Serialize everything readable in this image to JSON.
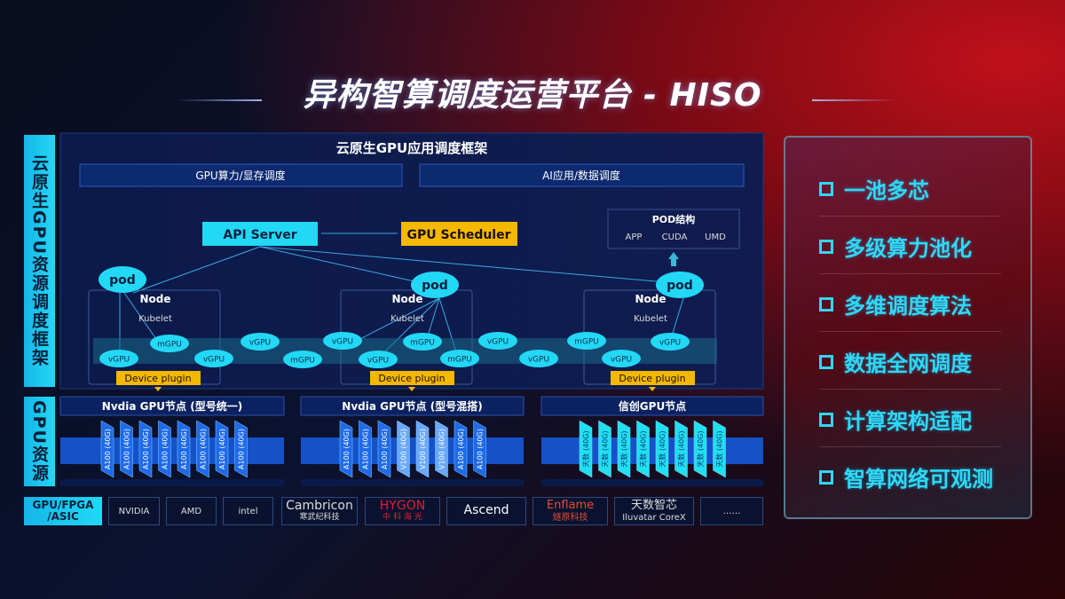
{
  "title": "异构智算调度运营平台 - HISO",
  "left_labels": {
    "framework": "云原生GPU资源调度框架",
    "resources": "GPU资源",
    "chips": "GPU/FPGA /ASIC"
  },
  "framework": {
    "header": "云原生GPU应用调度框架",
    "sub": [
      "GPU算力/显存调度",
      "AI应用/数据调度"
    ],
    "api_server": "API Server",
    "gpu_scheduler": "GPU Scheduler",
    "pod_structure": {
      "title": "POD结构",
      "items": [
        "APP",
        "CUDA",
        "UMD"
      ]
    },
    "pod": "pod",
    "node": "Node",
    "kubelet": "Kubelet",
    "device_plugin": "Device plugin",
    "gpus": [
      "vGPU",
      "mGPU",
      "vGPU",
      "vGPU",
      "mGPU",
      "vGPU",
      "vGPU",
      "mGPU",
      "mGPU",
      "vGPU",
      "vGPU",
      "mGPU",
      "vGPU",
      "vGPU"
    ]
  },
  "gpu_nodes": [
    {
      "title": "Nvdia GPU节点 (型号统一)",
      "cards": [
        "A100 (40G)",
        "A100 (40G)",
        "A100 (40G)",
        "A100 (40G)",
        "A100 (40G)",
        "A100 (40G)",
        "A100 (40G)",
        "A100 (40G)"
      ]
    },
    {
      "title": "Nvdia GPU节点 (型号混搭)",
      "cards": [
        "A100 (40G)",
        "A100 (40G)",
        "A100 (40G)",
        "V100 (40G)",
        "V100 (40G)",
        "V100 (40G)",
        "A100 (40G)",
        "A100 (40G)"
      ]
    },
    {
      "title": "信创GPU节点",
      "cards": [
        "天数 (40G)",
        "天数 (40G)",
        "天数 (40G)",
        "天数 (40G)",
        "天数 (40G)",
        "天数 (40G)",
        "天数 (40G)",
        "天数 (40G)"
      ]
    }
  ],
  "vendors": [
    [
      "NVIDIA"
    ],
    [
      "AMD"
    ],
    [
      "intel"
    ],
    [
      "Cambricon",
      "寒武纪科技"
    ],
    [
      "HYGON",
      "中 科 海 光"
    ],
    [
      "Ascend"
    ],
    [
      "Enflame",
      "燧原科技"
    ],
    [
      "天数智芯",
      "Iluvatar CoreX"
    ],
    [
      "……"
    ]
  ],
  "features": [
    "一池多芯",
    "多级算力池化",
    "多维调度算法",
    "数据全网调度",
    "计算架构适配",
    "智算网络可观测"
  ],
  "colors": {
    "cyan": "#22d8f5",
    "orange": "#f5b800",
    "card_blue": "#1e6ae8",
    "card_light": "#6aa8f8",
    "card_cyan": "#20e0f0"
  }
}
